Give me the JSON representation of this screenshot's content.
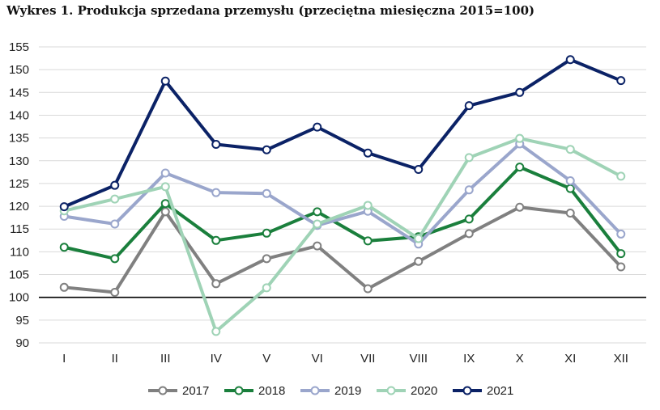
{
  "title": "Wykres 1. Produkcja sprzedana przemysłu (przeciętna miesięczna 2015=100)",
  "chart_data": {
    "type": "line",
    "categories": [
      "I",
      "II",
      "III",
      "IV",
      "V",
      "VI",
      "VII",
      "VIII",
      "IX",
      "X",
      "XI",
      "XII"
    ],
    "ylim": [
      90,
      155
    ],
    "yticks": [
      90,
      95,
      100,
      105,
      110,
      115,
      120,
      125,
      130,
      135,
      140,
      145,
      150,
      155
    ],
    "baseline": 100,
    "grid": "horizontal",
    "legend_position": "bottom",
    "series": [
      {
        "name": "2017",
        "color": "#808080",
        "values": [
          102.2,
          101.1,
          118.8,
          103.0,
          108.5,
          111.3,
          101.9,
          107.9,
          114.0,
          119.8,
          118.5,
          106.7
        ]
      },
      {
        "name": "2018",
        "color": "#1a7f3c",
        "values": [
          111.0,
          108.5,
          120.6,
          112.5,
          114.1,
          118.8,
          112.4,
          113.3,
          117.2,
          128.6,
          123.9,
          109.6
        ]
      },
      {
        "name": "2019",
        "color": "#9aa6cc",
        "values": [
          117.8,
          116.1,
          127.3,
          123.0,
          122.8,
          115.8,
          118.9,
          111.7,
          123.6,
          133.7,
          125.6,
          113.9
        ]
      },
      {
        "name": "2020",
        "color": "#9fd3b6",
        "values": [
          119.0,
          121.6,
          124.3,
          92.5,
          102.1,
          116.1,
          120.2,
          112.9,
          130.7,
          134.9,
          132.5,
          126.6
        ]
      },
      {
        "name": "2021",
        "color": "#0b2266",
        "values": [
          119.9,
          124.6,
          147.5,
          133.6,
          132.4,
          137.4,
          131.7,
          128.1,
          142.1,
          145.0,
          152.2,
          147.6
        ]
      }
    ]
  }
}
